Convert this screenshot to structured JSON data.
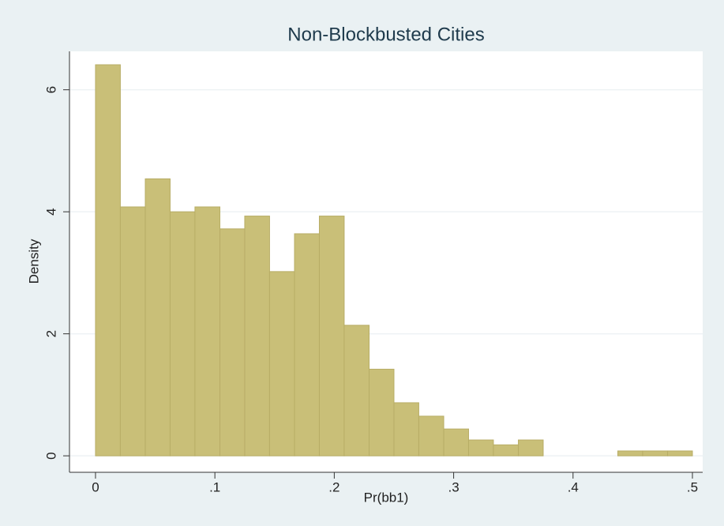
{
  "chart_data": {
    "type": "histogram",
    "title": "Non-Blockbusted Cities",
    "x_label": "Pr(bb1)",
    "y_label": "Density",
    "bins": [
      0,
      0.0208,
      0.0417,
      0.0625,
      0.0833,
      0.1042,
      0.125,
      0.1458,
      0.1667,
      0.1875,
      0.2083,
      0.2292,
      0.25,
      0.2708,
      0.2917,
      0.3125,
      0.3333,
      0.3542,
      0.375,
      0.3958,
      0.4167,
      0.4375,
      0.4583,
      0.4792,
      0.5
    ],
    "values": [
      6.41,
      4.08,
      4.54,
      4.0,
      4.08,
      3.72,
      3.93,
      3.02,
      3.64,
      3.93,
      2.14,
      1.42,
      0.87,
      0.65,
      0.44,
      0.26,
      0.18,
      0.26,
      0,
      0,
      0,
      0.08,
      0.08,
      0.08
    ],
    "color": "#c9bf78",
    "xlim": [
      -0.0218,
      0.5086
    ],
    "ylim": [
      -0.27,
      6.63
    ],
    "xticks": [
      0,
      {
        "value": 0.1,
        "label": ".1"
      },
      {
        "value": 0.2,
        "label": ".2"
      },
      {
        "value": 0.3,
        "label": ".3"
      },
      {
        "value": 0.4,
        "label": ".4"
      },
      {
        "value": 0.5,
        "label": ".5"
      }
    ],
    "yticks": [
      0,
      2,
      4,
      6
    ],
    "grid": true
  }
}
